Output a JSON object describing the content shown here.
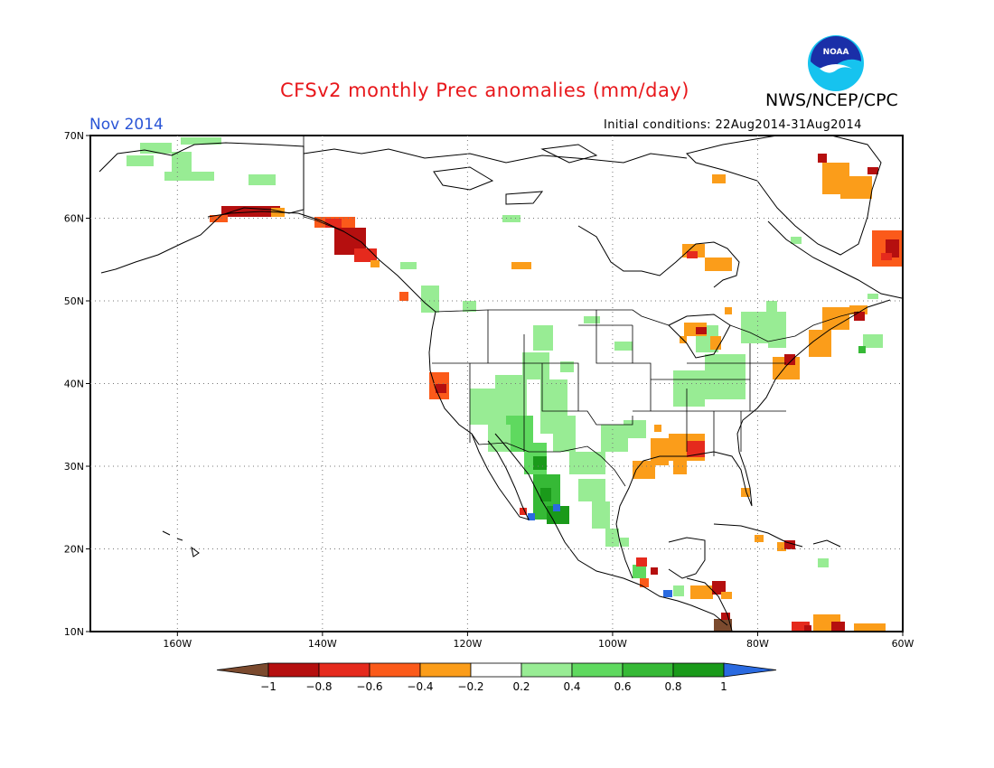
{
  "header": {
    "title": "CFSv2 monthly Prec anomalies (mm/day)",
    "agency": "NWS/NCEP/CPC",
    "month": "Nov 2014",
    "initial_conditions": "Initial conditions: 22Aug2014-31Aug2014"
  },
  "logo": {
    "text": "NOAA",
    "ring_color": "#16c3ef",
    "core_color": "#1a2fa8"
  },
  "map": {
    "lat_labels": [
      "70N",
      "60N",
      "50N",
      "40N",
      "30N",
      "20N",
      "10N"
    ],
    "lon_labels": [
      "160W",
      "140W",
      "120W",
      "100W",
      "80W",
      "60W"
    ],
    "lat_values": [
      70,
      60,
      50,
      40,
      30,
      20,
      10
    ],
    "lon_values": [
      -160,
      -140,
      -120,
      -100,
      -80,
      -60
    ],
    "lon_range": [
      -172,
      -60
    ],
    "lat_range": [
      10,
      70
    ],
    "grid": "dotted"
  },
  "colorbar": {
    "bins": [
      {
        "color": "#7b4a2e"
      },
      {
        "color": "#b50f0f"
      },
      {
        "color": "#e52a1d"
      },
      {
        "color": "#fb5a1a"
      },
      {
        "color": "#fb9d1a"
      },
      {
        "color": "#ffffff"
      },
      {
        "color": "#98ec94"
      },
      {
        "color": "#5fd95f"
      },
      {
        "color": "#36b936"
      },
      {
        "color": "#1a9a1a"
      },
      {
        "color": "#2a6ae0"
      }
    ],
    "ticks": [
      "−1",
      "−0.8",
      "−0.6",
      "−0.4",
      "−0.2",
      "0.2",
      "0.4",
      "0.6",
      "0.8",
      "1"
    ]
  }
}
